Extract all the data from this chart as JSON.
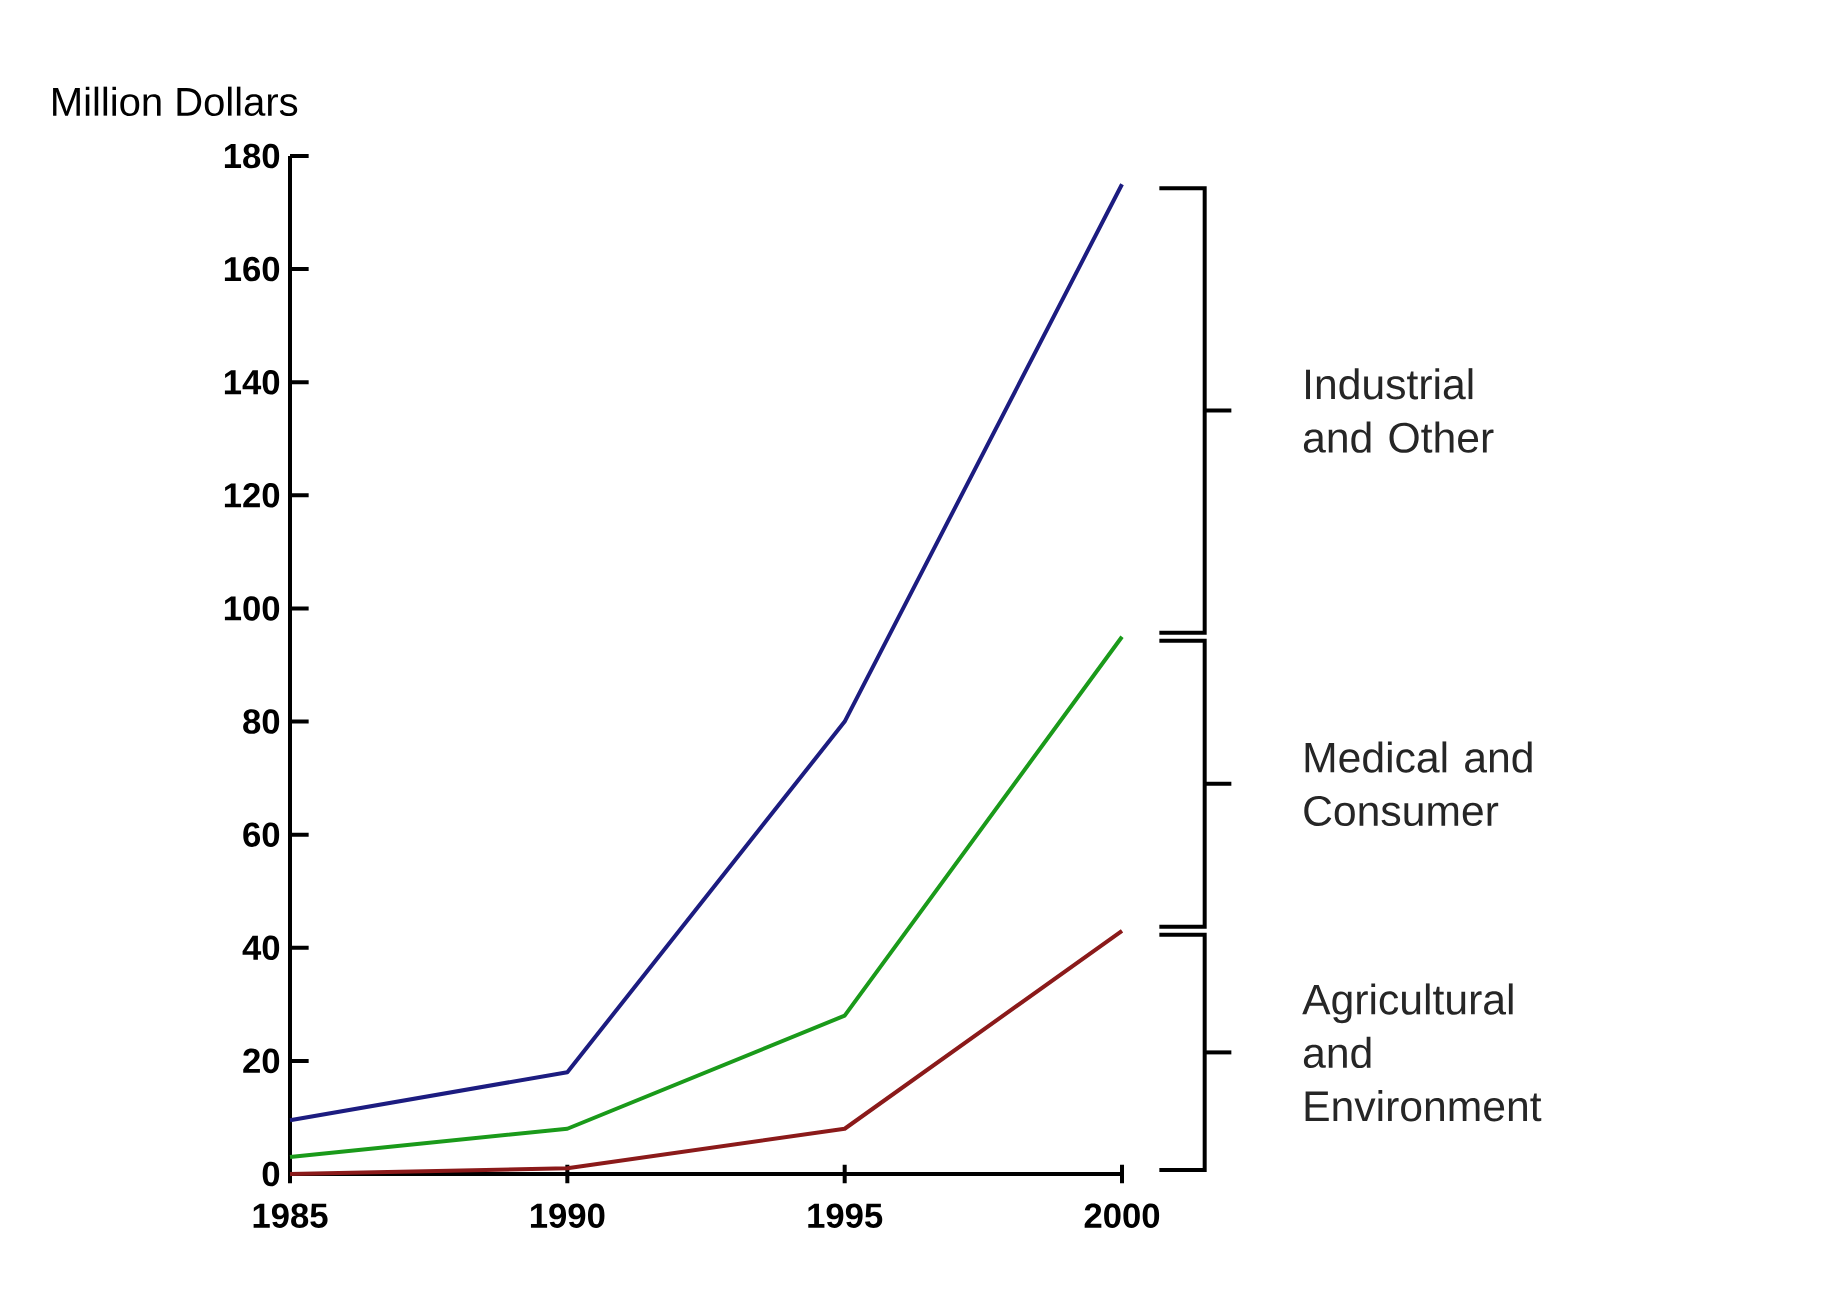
{
  "chart_data": {
    "type": "line",
    "ylabel": "Million Dollars",
    "x": [
      1985,
      1990,
      1995,
      2000
    ],
    "series": [
      {
        "name": "Industrial and Other",
        "color": "#1c1c80",
        "values": [
          9.5,
          18,
          80,
          175
        ]
      },
      {
        "name": "Medical and Consumer",
        "color": "#1a9a1a",
        "values": [
          3,
          8,
          28,
          95
        ]
      },
      {
        "name": "Agricultural and Environment",
        "color": "#8b1a1a",
        "values": [
          0,
          1,
          8,
          43
        ]
      }
    ],
    "xlim": [
      1985,
      2000
    ],
    "xticks": [
      1985,
      1990,
      1995,
      2000
    ],
    "ylim": [
      0,
      180
    ],
    "yticks": [
      0,
      20,
      40,
      60,
      80,
      100,
      120,
      140,
      160,
      180
    ],
    "grid": false,
    "marker": "none",
    "line_style": "solid"
  }
}
